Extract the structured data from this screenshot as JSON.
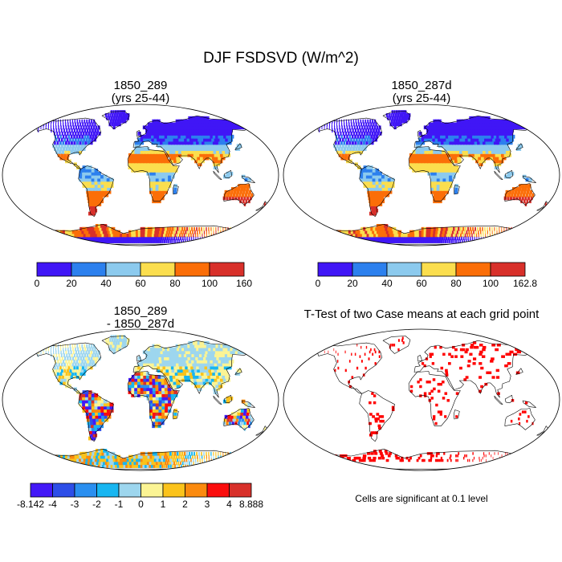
{
  "chart_data": {
    "type": "map",
    "title": "DJF FSDSVD (W/m^2)",
    "panels": [
      {
        "id": "case1",
        "title_line1": "1850_289",
        "title_line2": "(yrs 25-44)",
        "colorbar": {
          "colors": [
            "#4016f6",
            "#2c80ee",
            "#8ccaee",
            "#fbde4e",
            "#fb6e08",
            "#d8302a"
          ],
          "labels": [
            "0",
            "20",
            "40",
            "60",
            "80",
            "100",
            "160"
          ]
        }
      },
      {
        "id": "case2",
        "title_line1": "1850_287d",
        "title_line2": "(yrs 25-44)",
        "colorbar": {
          "colors": [
            "#4016f6",
            "#2c80ee",
            "#8ccaee",
            "#fbde4e",
            "#fb6e08",
            "#d8302a"
          ],
          "labels": [
            "0",
            "20",
            "40",
            "60",
            "80",
            "100",
            "162.8"
          ]
        }
      },
      {
        "id": "difference",
        "title_line1": "1850_289",
        "title_line2": "- 1850_287d",
        "colorbar": {
          "colors": [
            "#4319f7",
            "#2d4ee8",
            "#2a8ff0",
            "#18b6f1",
            "#9dd6ee",
            "#fbf494",
            "#fbc31b",
            "#fb8a0e",
            "#fb0d0d",
            "#d8302a"
          ],
          "labels": [
            "-8.142",
            "-4",
            "-3",
            "-2",
            "-1",
            "0",
            "1",
            "2",
            "3",
            "4",
            "8.888"
          ]
        }
      },
      {
        "id": "ttest",
        "title_line1": "T-Test of two Case means at each grid point",
        "note": "Cells are significant at 0.1 level",
        "significant_color": "#ff0000"
      }
    ]
  }
}
